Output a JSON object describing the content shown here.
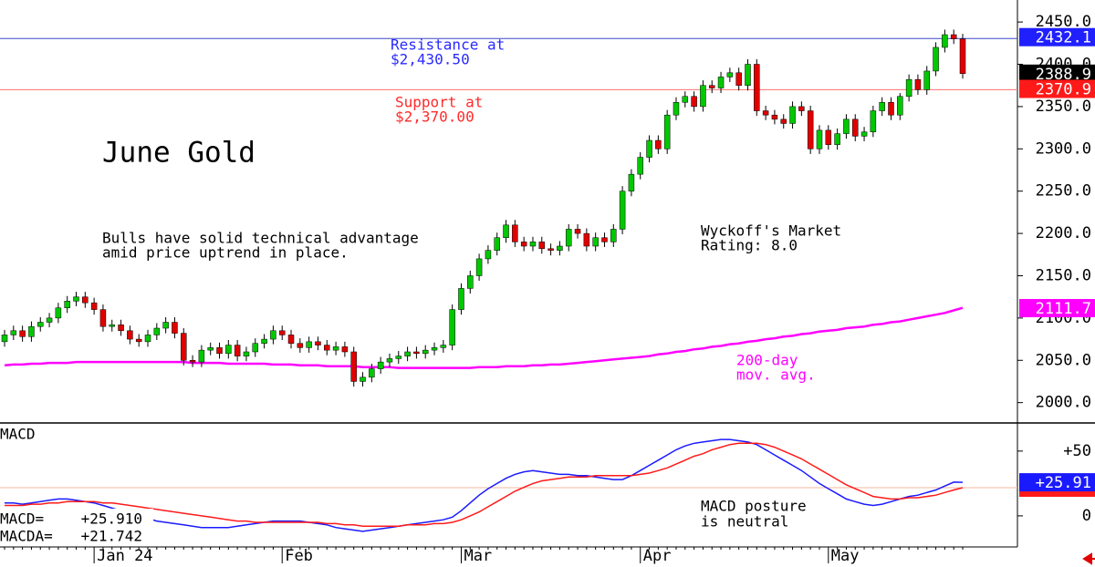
{
  "chart_data": {
    "type": "candlestick",
    "categories": [
      null,
      null,
      null,
      null,
      null,
      null,
      null,
      null,
      null,
      null,
      "Jan 24",
      null,
      null,
      null,
      null,
      null,
      null,
      null,
      null,
      null,
      null,
      null,
      null,
      null,
      null,
      null,
      null,
      null,
      null,
      null,
      null,
      "Feb",
      null,
      null,
      null,
      null,
      null,
      null,
      null,
      null,
      null,
      null,
      null,
      null,
      null,
      null,
      null,
      null,
      null,
      null,
      null,
      "Mar",
      null,
      null,
      null,
      null,
      null,
      null,
      null,
      null,
      null,
      null,
      null,
      null,
      null,
      null,
      null,
      null,
      null,
      null,
      null,
      "Apr",
      null,
      null,
      null,
      null,
      null,
      null,
      null,
      null,
      null,
      null,
      null,
      null,
      null,
      null,
      null,
      null,
      null,
      null,
      null,
      null,
      "May",
      null,
      null,
      null,
      null,
      null,
      null,
      null,
      null,
      null,
      null,
      null,
      null,
      null,
      null,
      null
    ],
    "open": [
      2072,
      2080,
      2085,
      2078,
      2090,
      2095,
      2100,
      2112,
      2120,
      2125,
      2118,
      2110,
      2090,
      2092,
      2085,
      2075,
      2072,
      2080,
      2088,
      2095,
      2082,
      2050,
      2048,
      2062,
      2065,
      2058,
      2068,
      2055,
      2060,
      2070,
      2075,
      2085,
      2080,
      2070,
      2065,
      2072,
      2068,
      2062,
      2066,
      2060,
      2025,
      2030,
      2040,
      2048,
      2052,
      2055,
      2060,
      2058,
      2062,
      2065,
      2068,
      2110,
      2135,
      2150,
      2170,
      2180,
      2195,
      2210,
      2190,
      2185,
      2190,
      2182,
      2180,
      2185,
      2205,
      2200,
      2185,
      2195,
      2190,
      2205,
      2250,
      2270,
      2290,
      2310,
      2300,
      2340,
      2355,
      2362,
      2350,
      2375,
      2372,
      2385,
      2390,
      2375,
      2400,
      2345,
      2340,
      2335,
      2330,
      2350,
      2345,
      2300,
      2322,
      2305,
      2318,
      2335,
      2315,
      2320,
      2345,
      2355,
      2340,
      2362,
      2382,
      2370,
      2392,
      2420,
      2435,
      2430
    ],
    "high": [
      2086,
      2091,
      2091,
      2096,
      2101,
      2106,
      2118,
      2126,
      2131,
      2131,
      2124,
      2116,
      2098,
      2098,
      2091,
      2081,
      2086,
      2094,
      2101,
      2101,
      2088,
      2056,
      2068,
      2071,
      2071,
      2074,
      2074,
      2066,
      2076,
      2081,
      2091,
      2091,
      2086,
      2076,
      2078,
      2078,
      2074,
      2072,
      2072,
      2066,
      2036,
      2046,
      2054,
      2058,
      2061,
      2066,
      2066,
      2068,
      2071,
      2074,
      2116,
      2141,
      2156,
      2176,
      2186,
      2201,
      2216,
      2216,
      2196,
      2196,
      2196,
      2188,
      2191,
      2211,
      2211,
      2206,
      2201,
      2201,
      2211,
      2256,
      2276,
      2296,
      2316,
      2316,
      2346,
      2361,
      2368,
      2368,
      2381,
      2381,
      2391,
      2396,
      2396,
      2406,
      2406,
      2351,
      2346,
      2341,
      2356,
      2356,
      2351,
      2328,
      2328,
      2324,
      2341,
      2341,
      2326,
      2351,
      2361,
      2361,
      2366,
      2388,
      2388,
      2398,
      2426,
      2441,
      2441,
      2436
    ],
    "low": [
      2066,
      2074,
      2072,
      2072,
      2084,
      2089,
      2094,
      2106,
      2114,
      2112,
      2104,
      2084,
      2084,
      2079,
      2069,
      2066,
      2066,
      2074,
      2082,
      2076,
      2044,
      2042,
      2042,
      2056,
      2052,
      2052,
      2049,
      2049,
      2054,
      2064,
      2069,
      2074,
      2064,
      2059,
      2059,
      2062,
      2056,
      2056,
      2054,
      2019,
      2019,
      2024,
      2034,
      2042,
      2046,
      2049,
      2052,
      2052,
      2056,
      2059,
      2062,
      2104,
      2129,
      2144,
      2164,
      2174,
      2189,
      2184,
      2179,
      2179,
      2176,
      2174,
      2174,
      2179,
      2194,
      2179,
      2179,
      2184,
      2184,
      2199,
      2244,
      2264,
      2284,
      2294,
      2294,
      2334,
      2349,
      2344,
      2344,
      2366,
      2366,
      2379,
      2369,
      2369,
      2339,
      2334,
      2329,
      2324,
      2324,
      2339,
      2294,
      2294,
      2299,
      2299,
      2312,
      2309,
      2309,
      2314,
      2339,
      2334,
      2334,
      2356,
      2364,
      2364,
      2386,
      2414,
      2424,
      2383
    ],
    "close": [
      2080,
      2085,
      2078,
      2090,
      2095,
      2100,
      2112,
      2120,
      2125,
      2118,
      2110,
      2090,
      2092,
      2085,
      2075,
      2072,
      2080,
      2088,
      2095,
      2082,
      2050,
      2048,
      2062,
      2065,
      2058,
      2068,
      2055,
      2060,
      2070,
      2075,
      2085,
      2080,
      2070,
      2065,
      2072,
      2068,
      2062,
      2066,
      2060,
      2025,
      2030,
      2040,
      2048,
      2052,
      2055,
      2060,
      2058,
      2062,
      2065,
      2068,
      2110,
      2135,
      2150,
      2170,
      2180,
      2195,
      2210,
      2190,
      2185,
      2190,
      2182,
      2180,
      2185,
      2205,
      2200,
      2185,
      2195,
      2190,
      2205,
      2250,
      2270,
      2290,
      2310,
      2300,
      2340,
      2355,
      2362,
      2350,
      2375,
      2372,
      2385,
      2390,
      2375,
      2400,
      2345,
      2340,
      2335,
      2330,
      2350,
      2345,
      2300,
      2322,
      2305,
      2318,
      2335,
      2315,
      2320,
      2345,
      2355,
      2340,
      2362,
      2382,
      2370,
      2392,
      2420,
      2435,
      2430,
      2389
    ],
    "up_color": "#00c800",
    "down_color": "#e00000",
    "moving_average": {
      "color": "#ff00ff",
      "values": [
        2044,
        2045,
        2045,
        2046,
        2046,
        2047,
        2047,
        2047,
        2048,
        2048,
        2048,
        2048,
        2048,
        2048,
        2048,
        2048,
        2048,
        2048,
        2048,
        2048,
        2048,
        2047,
        2047,
        2047,
        2047,
        2046,
        2046,
        2046,
        2046,
        2046,
        2045,
        2045,
        2045,
        2044,
        2044,
        2044,
        2043,
        2043,
        2043,
        2043,
        2042,
        2042,
        2042,
        2042,
        2041,
        2041,
        2041,
        2041,
        2041,
        2041,
        2041,
        2041,
        2041,
        2042,
        2042,
        2042,
        2043,
        2043,
        2043,
        2044,
        2044,
        2045,
        2045,
        2046,
        2047,
        2048,
        2049,
        2050,
        2051,
        2052,
        2053,
        2054,
        2055,
        2057,
        2058,
        2060,
        2061,
        2063,
        2064,
        2066,
        2067,
        2069,
        2070,
        2072,
        2073,
        2075,
        2076,
        2078,
        2079,
        2081,
        2082,
        2084,
        2085,
        2086,
        2088,
        2089,
        2090,
        2092,
        2093,
        2095,
        2096,
        2098,
        2100,
        2102,
        2104,
        2106,
        2109,
        2112
      ]
    },
    "ylim": [
      1977,
      2476
    ],
    "yticks": [
      {
        "value": 2000,
        "label": "2000.0"
      },
      {
        "value": 2050,
        "label": "2050.0"
      },
      {
        "value": 2100,
        "label": "2100.0"
      },
      {
        "value": 2150,
        "label": "2150.0"
      },
      {
        "value": 2200,
        "label": "2200.0"
      },
      {
        "value": 2250,
        "label": "2250.0"
      },
      {
        "value": 2300,
        "label": "2300.0"
      },
      {
        "value": 2350,
        "label": "2350.0"
      },
      {
        "value": 2400,
        "label": "2400.0"
      },
      {
        "value": 2450,
        "label": "2450.0"
      }
    ],
    "levels": [
      {
        "value": 2430.5,
        "color": "#3a48c8"
      },
      {
        "value": 2370,
        "color": "#ff7070"
      }
    ],
    "price_tags": [
      {
        "value": 2432.1,
        "color": "#2020ff"
      },
      {
        "value": 2388.9,
        "color": "#000000"
      },
      {
        "value": 2370.9,
        "color": "#ff1a1a"
      },
      {
        "value": 2111.7,
        "color": "#ff00ff"
      }
    ],
    "annotations": [
      {
        "text": "Resistance at",
        "color": "#2a2aff"
      },
      {
        "text": "$2,430.50",
        "color": "#2a2aff"
      },
      {
        "text": "Support at",
        "color": "#ff2a2a"
      },
      {
        "text": "$2,370.00",
        "color": "#ff2a2a"
      },
      {
        "text": "June Gold",
        "color": "#000000"
      },
      {
        "text": "Bulls have solid technical advantage",
        "color": "#000000"
      },
      {
        "text": "amid price uptrend in place.",
        "color": "#000000"
      },
      {
        "text": "Wyckoff's Market",
        "color": "#000000"
      },
      {
        "text": "Rating: 8.0",
        "color": "#000000"
      },
      {
        "text": "200-day",
        "color": "#ff00ff"
      },
      {
        "text": "mov. avg.",
        "color": "#ff00ff"
      },
      {
        "text": "MACD posture",
        "color": "#000000"
      },
      {
        "text": "is neutral",
        "color": "#000000"
      }
    ],
    "macd_panel": {
      "title": "MACD",
      "ylim": [
        -24,
        71
      ],
      "yticks": [
        {
          "value": 50,
          "label": "+50"
        },
        0
      ],
      "series": [
        {
          "name": "MACD=",
          "color": "#1a1aff",
          "value_label": "+25.910",
          "values": [
            10,
            10,
            9,
            10,
            11,
            12,
            13,
            13,
            12,
            11,
            10,
            8,
            6,
            4,
            2,
            0,
            -2,
            -4,
            -5,
            -6,
            -7,
            -8,
            -9,
            -9,
            -9,
            -9,
            -8,
            -7,
            -6,
            -5,
            -4,
            -4,
            -4,
            -4,
            -5,
            -6,
            -7,
            -9,
            -10,
            -11,
            -12,
            -11,
            -10,
            -9,
            -8,
            -7,
            -6,
            -5,
            -4,
            -3,
            -1,
            4,
            10,
            16,
            21,
            25,
            29,
            32,
            34,
            35,
            34,
            33,
            32,
            32,
            31,
            31,
            30,
            29,
            28,
            28,
            31,
            35,
            39,
            43,
            47,
            51,
            54,
            56,
            57,
            58,
            59,
            59,
            58,
            57,
            55,
            51,
            47,
            43,
            39,
            35,
            30,
            25,
            21,
            17,
            13,
            11,
            9,
            8,
            9,
            11,
            13,
            15,
            16,
            18,
            20,
            23,
            26,
            25.91
          ]
        },
        {
          "name": "MACDA=",
          "color": "#ff1a1a",
          "value_label": "+21.742",
          "values": [
            8,
            8,
            8,
            9,
            9,
            10,
            10,
            11,
            11,
            11,
            11,
            10,
            10,
            9,
            8,
            7,
            6,
            5,
            4,
            3,
            2,
            1,
            0,
            -1,
            -2,
            -3,
            -4,
            -4,
            -5,
            -5,
            -5,
            -5,
            -5,
            -5,
            -5,
            -5,
            -6,
            -6,
            -7,
            -7,
            -8,
            -8,
            -8,
            -8,
            -8,
            -7,
            -7,
            -7,
            -6,
            -6,
            -5,
            -3,
            0,
            3,
            7,
            11,
            15,
            19,
            22,
            25,
            27,
            28,
            29,
            30,
            30,
            30,
            31,
            31,
            31,
            31,
            31,
            32,
            33,
            35,
            37,
            40,
            43,
            46,
            48,
            51,
            53,
            55,
            56,
            56,
            56,
            55,
            53,
            50,
            47,
            44,
            40,
            36,
            32,
            28,
            24,
            21,
            18,
            15,
            14,
            13,
            13,
            14,
            14,
            15,
            16,
            18,
            20,
            21.742
          ]
        }
      ],
      "tags": [
        {
          "value": 21.742,
          "color": "#ff1a1a"
        },
        {
          "value": 25.91,
          "label": "+25.91",
          "color": "#1a1aff"
        }
      ]
    }
  }
}
